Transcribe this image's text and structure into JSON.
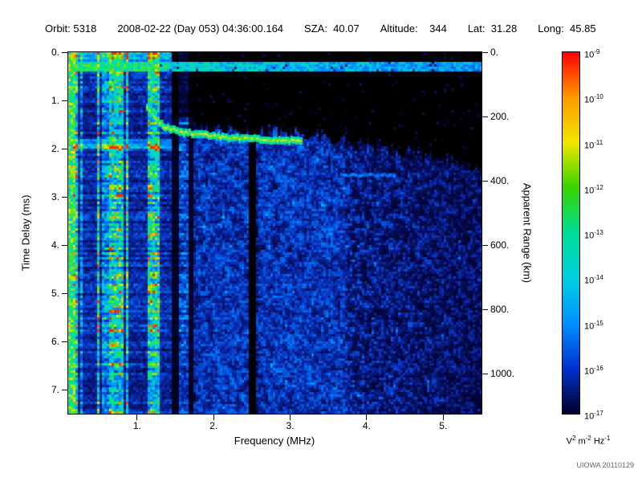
{
  "header": {
    "fields": [
      {
        "text": "Orbit: 5318"
      },
      {
        "text": "2008-02-22 (Day 053) 04:36:00.164"
      },
      {
        "text": "SZA:  40.07"
      },
      {
        "text": "Altitude:    344"
      },
      {
        "text": "Lat:  31.28"
      },
      {
        "text": "Long:  45.85"
      }
    ]
  },
  "footer": {
    "watermark": "UIOWA 20110129"
  },
  "chart_data": {
    "type": "heatmap",
    "subtype": "radar-sounder-ionogram-spectrogram",
    "x_axis": {
      "label": "Frequency (MHz)",
      "range_mhz": [
        0.1,
        5.5
      ],
      "ticks": [
        1,
        2,
        3,
        4,
        5
      ],
      "tick_labels": [
        "1.",
        "2.",
        "3.",
        "4.",
        "5."
      ]
    },
    "y_axis_left": {
      "label": "Time Delay (ms)",
      "range_ms": [
        0,
        7.5
      ],
      "ticks": [
        0,
        1,
        2,
        3,
        4,
        5,
        6,
        7
      ],
      "tick_labels": [
        "0.",
        "1.",
        "2.",
        "3.",
        "4.",
        "5.",
        "6.",
        "7."
      ]
    },
    "y_axis_right": {
      "label": "Apparent Range (km)",
      "ticks_km": [
        0,
        200,
        400,
        600,
        800,
        1000
      ],
      "tick_labels": [
        "0.",
        "200.",
        "400.",
        "600.",
        "800.",
        "1000."
      ],
      "km_per_ms": 150
    },
    "colorbar": {
      "scale": "log10",
      "base": "10",
      "tick_exponents": [
        "-9",
        "-10",
        "-11",
        "-12",
        "-13",
        "-14",
        "-15",
        "-16",
        "-17"
      ],
      "unit_parts": [
        {
          "text": "V"
        },
        {
          "text": "2",
          "sup": true
        },
        {
          "text": " m"
        },
        {
          "text": "-2",
          "sup": true
        },
        {
          "text": " Hz"
        },
        {
          "text": "-1",
          "sup": true
        }
      ],
      "colors_top_to_bottom": [
        "#ff0000",
        "#ff9800",
        "#f0e600",
        "#38d400",
        "#00dc96",
        "#00cfe0",
        "#0090ff",
        "#0030d0",
        "#000028"
      ]
    },
    "colormap_stops": [
      [
        0,
        0,
        0,
        0
      ],
      [
        0.1,
        5,
        5,
        60
      ],
      [
        0.25,
        10,
        45,
        185
      ],
      [
        0.42,
        0,
        125,
        255
      ],
      [
        0.55,
        0,
        205,
        225
      ],
      [
        0.68,
        0,
        228,
        140
      ],
      [
        0.78,
        70,
        228,
        40
      ],
      [
        0.9,
        232,
        232,
        0
      ],
      [
        1,
        255,
        40,
        0
      ]
    ],
    "features": {
      "noise_band": {
        "time_delay_ms": [
          0.2,
          0.42
        ],
        "freq_mhz": [
          0.1,
          5.5
        ]
      },
      "plasma_stripes_zone": {
        "freq_mhz": [
          0.1,
          1.44
        ]
      },
      "stripes_transition_mhz": 1.72,
      "bright_row_ms": [
        1.82,
        2.0
      ],
      "dark_column_mhz": 2.5,
      "black_top_region": "black above ionospheric echo trace for f > 1.4 MHz, deepening toward high frequency",
      "ionosphere_trace_points_f_t": [
        [
          1.12,
          1.12
        ],
        [
          1.18,
          1.26
        ],
        [
          1.25,
          1.4
        ],
        [
          1.32,
          1.52
        ],
        [
          1.45,
          1.6
        ],
        [
          1.6,
          1.66
        ],
        [
          1.8,
          1.7
        ],
        [
          2.0,
          1.73
        ],
        [
          2.2,
          1.76
        ],
        [
          2.4,
          1.78
        ],
        [
          2.6,
          1.8
        ],
        [
          2.8,
          1.82
        ],
        [
          3.0,
          1.83
        ],
        [
          3.15,
          1.84
        ]
      ],
      "faint_echo": {
        "freq_mhz": [
          3.65,
          4.35
        ],
        "time_delay_ms": 2.52
      },
      "seed": 1234
    }
  }
}
